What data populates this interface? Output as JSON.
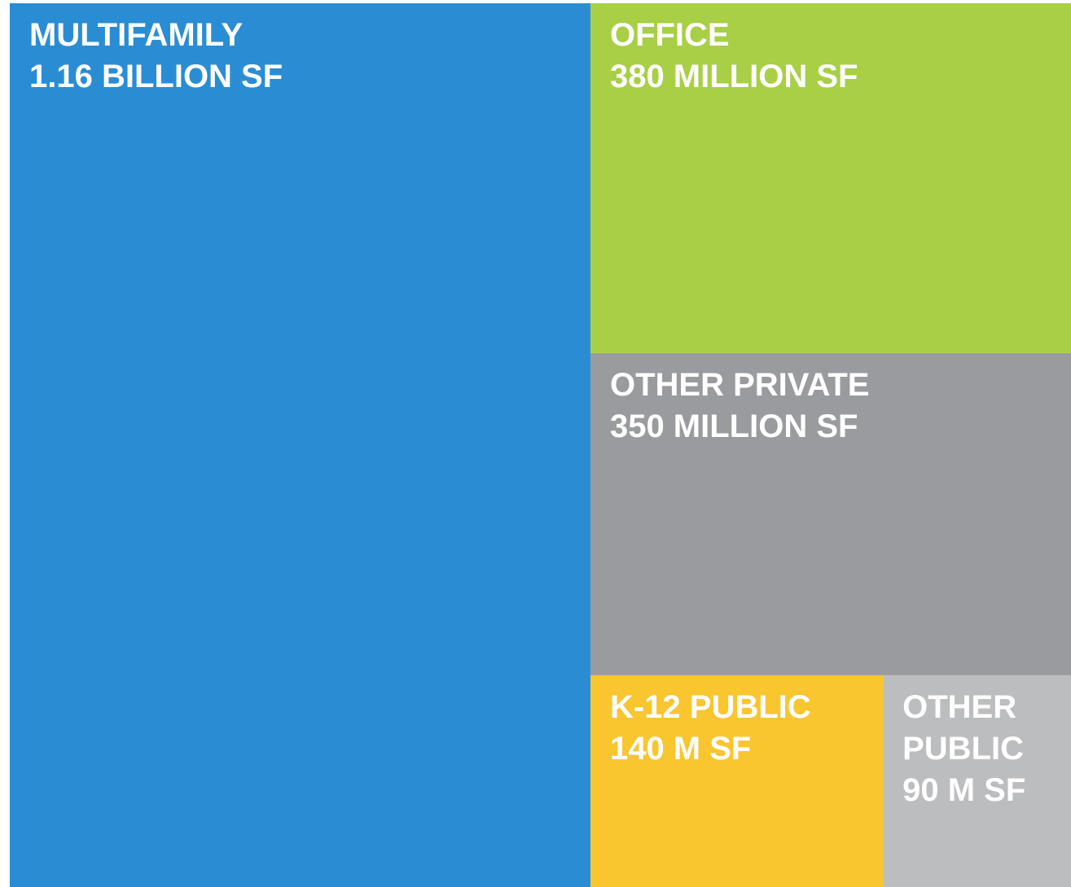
{
  "chart_data": {
    "type": "treemap",
    "categories": [
      "MULTIFAMILY",
      "OFFICE",
      "OTHER PRIVATE",
      "K-12 PUBLIC",
      "OTHER PUBLIC"
    ],
    "values": [
      1160000000,
      380000000,
      350000000,
      140000000,
      90000000
    ],
    "value_labels": [
      "1.16 BILLION SF",
      "380 MILLION SF",
      "350 MILLION SF",
      "140 M SF",
      "90 M SF"
    ],
    "colors": [
      "#2a8dd4",
      "#a8cf45",
      "#9a9b9e",
      "#f9c62f",
      "#bcbdbf"
    ]
  }
}
